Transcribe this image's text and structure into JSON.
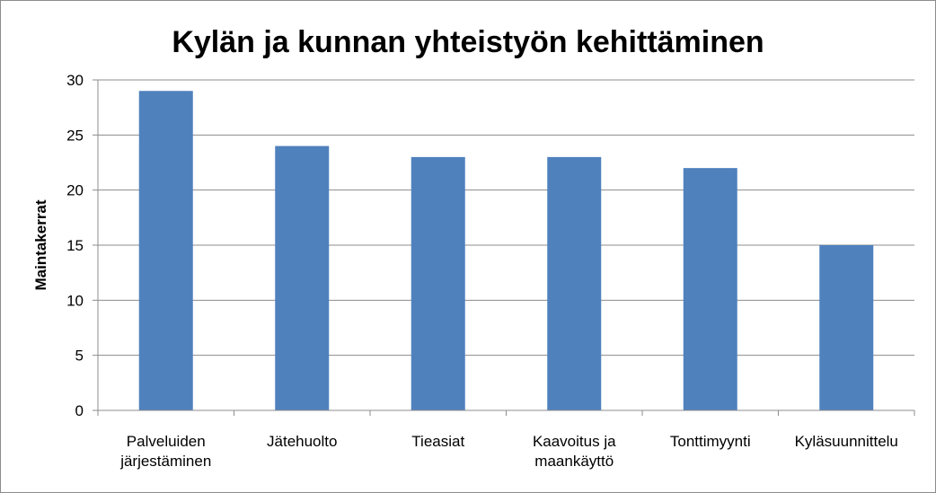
{
  "chart_data": {
    "type": "bar",
    "title": "Kylän ja kunnan yhteistyön kehittäminen",
    "ylabel": "Maintakerrat",
    "xlabel": "",
    "ylim": [
      0,
      30
    ],
    "yticks": [
      0,
      5,
      10,
      15,
      20,
      25,
      30
    ],
    "grid": true,
    "categories": [
      "Palveluiden järjestäminen",
      "Jätehuolto",
      "Tieasiat",
      "Kaavoitus ja maankäyttö",
      "Tonttimyynti",
      "Kyläsuunnittelu"
    ],
    "category_lines": [
      [
        "Palveluiden",
        "järjestäminen"
      ],
      [
        "Jätehuolto"
      ],
      [
        "Tieasiat"
      ],
      [
        "Kaavoitus ja",
        "maankäyttö"
      ],
      [
        "Tonttimyynti"
      ],
      [
        "Kyläsuunnittelu"
      ]
    ],
    "values": [
      29,
      24,
      23,
      23,
      22,
      15
    ],
    "bar_color": "#4F81BD",
    "grid_color": "#8C8C8C"
  }
}
